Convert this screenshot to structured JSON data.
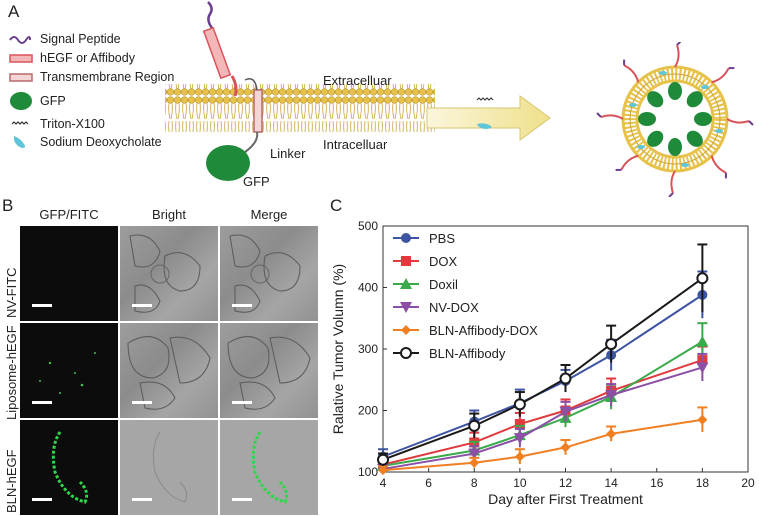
{
  "panelA": {
    "letter": "A",
    "legend": [
      {
        "label": "Signal Peptide",
        "icon": "signal-peptide-icon"
      },
      {
        "label": "hEGF or Affibody",
        "icon": "hegf-icon"
      },
      {
        "label": "Transmembrane Region",
        "icon": "transmembrane-icon"
      },
      {
        "label": "GFP",
        "icon": "gfp-icon"
      },
      {
        "label": "Triton-X100",
        "icon": "triton-icon"
      },
      {
        "label": "Sodium Deoxycholate",
        "icon": "deoxycholate-icon"
      }
    ],
    "extracellular": "Extracelluar",
    "intracellular": "Intracelluar",
    "linker": "Linker",
    "gfp": "GFP"
  },
  "panelB": {
    "letter": "B",
    "columns": [
      "GFP/FITC",
      "Bright",
      "Merge"
    ],
    "rows": [
      "NV-FITC",
      "Liposome-hEGF",
      "BLN-hEGF"
    ]
  },
  "panelC": {
    "letter": "C"
  },
  "chart_data": {
    "type": "line",
    "xlabel": "Day after First Treatment",
    "ylabel": "Ralative Tumor Volumn (%)",
    "xlim": [
      4,
      20
    ],
    "ylim": [
      100,
      500
    ],
    "xticks": [
      4,
      6,
      8,
      10,
      12,
      14,
      16,
      18,
      20
    ],
    "yticks": [
      100,
      200,
      300,
      400,
      500
    ],
    "x": [
      4,
      8,
      10,
      12,
      14,
      18
    ],
    "legend_position": "top-left",
    "series": [
      {
        "name": "PBS",
        "color": "#3d54a3",
        "marker": "circle",
        "values": [
          125,
          182,
          212,
          248,
          290,
          388
        ],
        "err": [
          12,
          18,
          22,
          18,
          25,
          38
        ]
      },
      {
        "name": "DOX",
        "color": "#e03a3e",
        "marker": "square",
        "values": [
          112,
          148,
          178,
          200,
          232,
          282
        ],
        "err": [
          10,
          16,
          18,
          18,
          20,
          22
        ]
      },
      {
        "name": "Doxil",
        "color": "#3aaa4a",
        "marker": "triangle-up",
        "values": [
          110,
          135,
          160,
          188,
          222,
          312
        ],
        "err": [
          10,
          14,
          15,
          15,
          20,
          30
        ]
      },
      {
        "name": "NV-DOX",
        "color": "#8b4fa6",
        "marker": "triangle-down",
        "values": [
          105,
          130,
          155,
          198,
          225,
          270
        ],
        "err": [
          8,
          12,
          15,
          16,
          18,
          22
        ]
      },
      {
        "name": "BLN-Affibody-DOX",
        "color": "#f07f22",
        "marker": "diamond",
        "values": [
          103,
          115,
          125,
          140,
          162,
          185
        ],
        "err": [
          6,
          8,
          12,
          12,
          12,
          20
        ]
      },
      {
        "name": "BLN-Affibody",
        "color": "#1a1a1a",
        "marker": "open-circle",
        "values": [
          120,
          175,
          210,
          252,
          308,
          415
        ],
        "err": [
          10,
          20,
          20,
          22,
          30,
          55
        ]
      }
    ]
  }
}
